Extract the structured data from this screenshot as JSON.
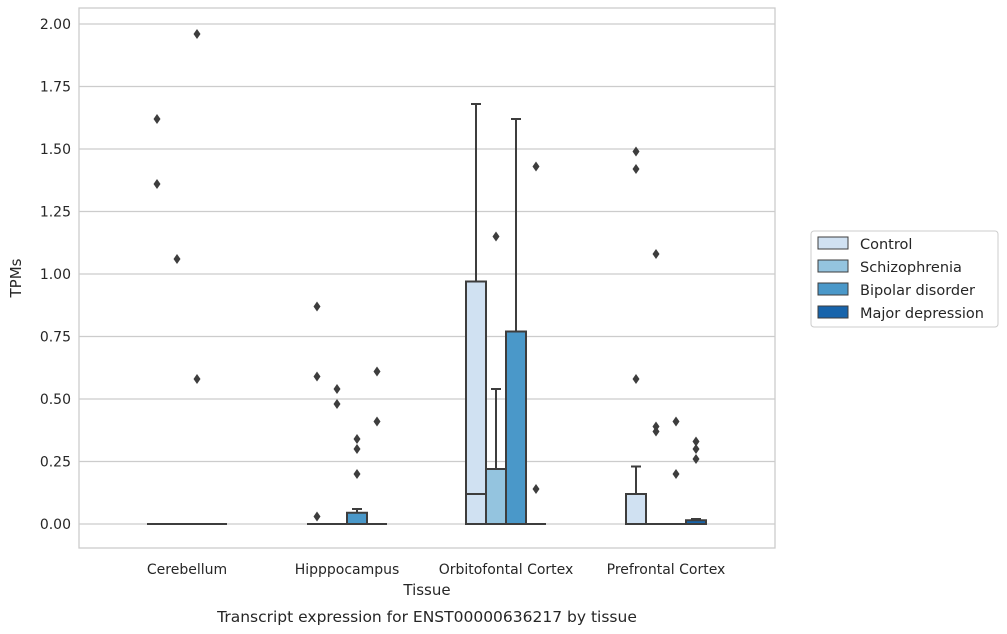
{
  "caption": "Transcript expression for ENST00000636217 by tissue",
  "chart_data": {
    "type": "box",
    "title": "",
    "xlabel": "Tissue",
    "ylabel": "TPMs",
    "ylim": [
      -0.09,
      2.06
    ],
    "yticks": [
      "0.00",
      "0.25",
      "0.50",
      "0.75",
      "1.00",
      "1.25",
      "1.50",
      "1.75",
      "2.00"
    ],
    "grid": "horizontal",
    "legend_position": "right",
    "categories": [
      "Cerebellum",
      "Hipppocampus",
      "Orbitofontal Cortex",
      "Prefrontal Cortex"
    ],
    "series": [
      {
        "name": "Control",
        "color": "#d0e1f2",
        "boxes": [
          {
            "q1": 0,
            "median": 0,
            "q3": 0,
            "whisker_low": 0,
            "whisker_high": 0,
            "outliers": [
              1.62,
              1.36
            ]
          },
          {
            "q1": 0,
            "median": 0,
            "q3": 0,
            "whisker_low": 0,
            "whisker_high": 0,
            "outliers": [
              0.87,
              0.59,
              0.03
            ]
          },
          {
            "q1": 0,
            "median": 0.12,
            "q3": 0.97,
            "whisker_low": 0,
            "whisker_high": 1.68,
            "outliers": []
          },
          {
            "q1": 0,
            "median": 0,
            "q3": 0.12,
            "whisker_low": 0,
            "whisker_high": 0.23,
            "outliers": [
              1.49,
              1.42,
              0.58
            ]
          }
        ]
      },
      {
        "name": "Schizophrenia",
        "color": "#94c4df",
        "boxes": [
          {
            "q1": 0,
            "median": 0,
            "q3": 0,
            "whisker_low": 0,
            "whisker_high": 0,
            "outliers": [
              1.06
            ]
          },
          {
            "q1": 0,
            "median": 0,
            "q3": 0,
            "whisker_low": 0,
            "whisker_high": 0,
            "outliers": [
              0.54,
              0.48
            ]
          },
          {
            "q1": 0,
            "median": 0,
            "q3": 0.22,
            "whisker_low": 0,
            "whisker_high": 0.54,
            "outliers": [
              1.15
            ]
          },
          {
            "q1": 0,
            "median": 0,
            "q3": 0,
            "whisker_low": 0,
            "whisker_high": 0,
            "outliers": [
              1.08,
              0.39,
              0.37
            ]
          }
        ]
      },
      {
        "name": "Bipolar disorder",
        "color": "#4a98c9",
        "boxes": [
          {
            "q1": 0,
            "median": 0,
            "q3": 0,
            "whisker_low": 0,
            "whisker_high": 0,
            "outliers": [
              1.96,
              0.58
            ]
          },
          {
            "q1": 0,
            "median": 0,
            "q3": 0.045,
            "whisker_low": 0,
            "whisker_high": 0.06,
            "outliers": [
              0.34,
              0.3,
              0.2
            ]
          },
          {
            "q1": 0,
            "median": 0,
            "q3": 0.77,
            "whisker_low": 0,
            "whisker_high": 1.62,
            "outliers": []
          },
          {
            "q1": 0,
            "median": 0,
            "q3": 0,
            "whisker_low": 0,
            "whisker_high": 0,
            "outliers": [
              0.41,
              0.2
            ]
          }
        ]
      },
      {
        "name": "Major depression",
        "color": "#1764ab",
        "boxes": [
          {
            "q1": 0,
            "median": 0,
            "q3": 0,
            "whisker_low": 0,
            "whisker_high": 0,
            "outliers": []
          },
          {
            "q1": 0,
            "median": 0,
            "q3": 0,
            "whisker_low": 0,
            "whisker_high": 0,
            "outliers": [
              0.61,
              0.41
            ]
          },
          {
            "q1": 0,
            "median": 0,
            "q3": 0,
            "whisker_low": 0,
            "whisker_high": 0,
            "outliers": [
              1.43,
              0.14
            ]
          },
          {
            "q1": 0,
            "median": 0,
            "q3": 0.015,
            "whisker_low": 0,
            "whisker_high": 0.02,
            "outliers": [
              0.33,
              0.3,
              0.26
            ]
          }
        ]
      }
    ]
  }
}
